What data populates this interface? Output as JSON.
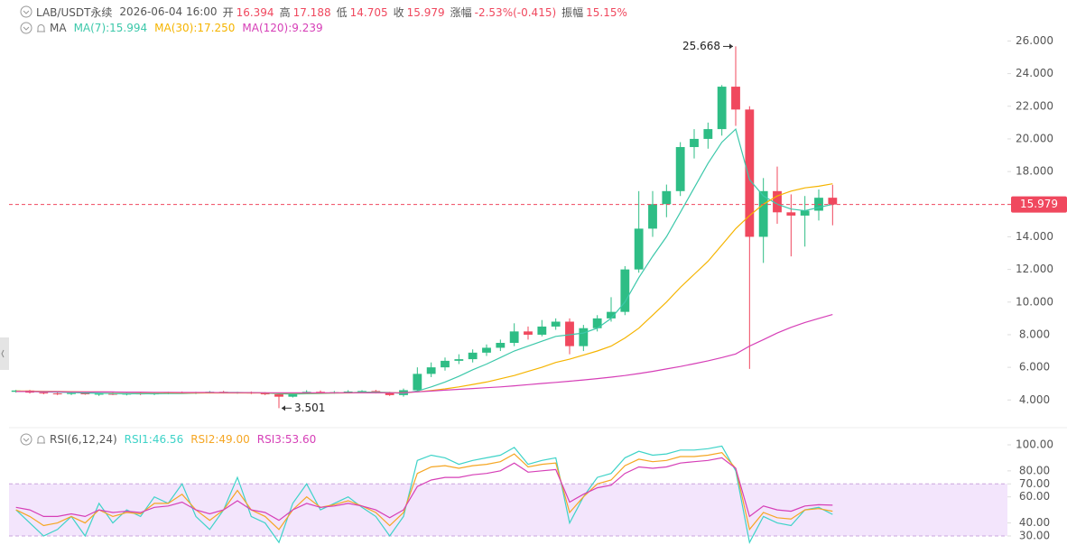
{
  "header": {
    "symbol": "LAB/USDT永续",
    "time": "2026-06-04 16:00",
    "fields": [
      {
        "label": "开",
        "value": "16.394"
      },
      {
        "label": "高",
        "value": "17.188"
      },
      {
        "label": "低",
        "value": "14.705"
      },
      {
        "label": "收",
        "value": "15.979"
      },
      {
        "label": "涨幅",
        "value": "-2.53%(-0.415)"
      },
      {
        "label": "振幅",
        "value": "15.15%"
      }
    ]
  },
  "chart_data": [
    {
      "type": "candlestick",
      "legend_title": "MA",
      "up_color": "#2ebd85",
      "down_color": "#f0485e",
      "ylim": [
        2.8,
        26.3
      ],
      "yticks": [
        {
          "value": 4,
          "label": "4.000"
        },
        {
          "value": 6,
          "label": "6.000"
        },
        {
          "value": 8,
          "label": "8.000"
        },
        {
          "value": 10,
          "label": "10.000"
        },
        {
          "value": 12,
          "label": "12.000"
        },
        {
          "value": 14,
          "label": "14.000"
        },
        {
          "value": 16,
          "label": "16.000"
        },
        {
          "value": 18,
          "label": "18.000"
        },
        {
          "value": 20,
          "label": "20.000"
        },
        {
          "value": 22,
          "label": "22.000"
        },
        {
          "value": 24,
          "label": "24.000"
        },
        {
          "value": 26,
          "label": "26.000"
        }
      ],
      "last_price": {
        "value": 15.979,
        "label": "15.979"
      },
      "annotations": [
        {
          "value": 25.668,
          "label": "25.668"
        },
        {
          "value": 3.501,
          "label": "3.501"
        }
      ],
      "candles": [
        [
          4.5,
          4.62,
          4.45,
          4.58
        ],
        [
          4.58,
          4.62,
          4.4,
          4.45
        ],
        [
          4.45,
          4.52,
          4.35,
          4.4
        ],
        [
          4.4,
          4.48,
          4.3,
          4.38
        ],
        [
          4.38,
          4.45,
          4.3,
          4.42
        ],
        [
          4.42,
          4.5,
          4.32,
          4.35
        ],
        [
          4.35,
          4.42,
          4.25,
          4.38
        ],
        [
          4.38,
          4.45,
          4.3,
          4.33
        ],
        [
          4.33,
          4.42,
          4.28,
          4.4
        ],
        [
          4.4,
          4.48,
          4.3,
          4.36
        ],
        [
          4.36,
          4.44,
          4.3,
          4.4
        ],
        [
          4.4,
          4.5,
          4.35,
          4.45
        ],
        [
          4.45,
          4.52,
          4.38,
          4.42
        ],
        [
          4.42,
          4.5,
          4.36,
          4.46
        ],
        [
          4.46,
          4.55,
          4.4,
          4.5
        ],
        [
          4.5,
          4.56,
          4.4,
          4.44
        ],
        [
          4.44,
          4.5,
          4.38,
          4.46
        ],
        [
          4.46,
          4.52,
          4.36,
          4.4
        ],
        [
          4.4,
          4.48,
          4.3,
          4.35
        ],
        [
          4.35,
          4.42,
          3.501,
          4.2
        ],
        [
          4.2,
          4.45,
          4.15,
          4.4
        ],
        [
          4.4,
          4.6,
          4.35,
          4.5
        ],
        [
          4.5,
          4.58,
          4.4,
          4.45
        ],
        [
          4.45,
          4.55,
          4.38,
          4.48
        ],
        [
          4.48,
          4.6,
          4.42,
          4.52
        ],
        [
          4.52,
          4.6,
          4.45,
          4.55
        ],
        [
          4.55,
          4.62,
          4.4,
          4.45
        ],
        [
          4.45,
          4.5,
          4.25,
          4.3
        ],
        [
          4.3,
          4.7,
          4.2,
          4.6
        ],
        [
          4.6,
          6.0,
          4.55,
          5.6
        ],
        [
          5.6,
          6.3,
          5.4,
          6.0
        ],
        [
          6.0,
          6.6,
          5.8,
          6.4
        ],
        [
          6.4,
          6.8,
          6.2,
          6.5
        ],
        [
          6.5,
          7.1,
          6.3,
          6.9
        ],
        [
          6.9,
          7.4,
          6.7,
          7.2
        ],
        [
          7.2,
          7.7,
          7.0,
          7.5
        ],
        [
          7.5,
          8.7,
          7.3,
          8.2
        ],
        [
          8.2,
          8.5,
          7.7,
          8.0
        ],
        [
          8.0,
          8.9,
          7.9,
          8.5
        ],
        [
          8.5,
          9.0,
          8.3,
          8.8
        ],
        [
          8.8,
          9.0,
          6.8,
          7.3
        ],
        [
          7.3,
          8.6,
          7.0,
          8.4
        ],
        [
          8.4,
          9.2,
          8.2,
          9.0
        ],
        [
          9.0,
          10.3,
          8.8,
          9.4
        ],
        [
          9.4,
          12.2,
          9.2,
          12.0
        ],
        [
          12.0,
          16.8,
          11.8,
          14.5
        ],
        [
          14.5,
          16.8,
          14.0,
          16.0
        ],
        [
          16.0,
          17.2,
          15.2,
          16.8
        ],
        [
          16.8,
          19.8,
          16.5,
          19.5
        ],
        [
          19.5,
          20.6,
          18.8,
          20.0
        ],
        [
          20.0,
          21.0,
          19.4,
          20.6
        ],
        [
          20.6,
          23.3,
          20.2,
          23.2
        ],
        [
          23.2,
          25.668,
          20.8,
          21.8
        ],
        [
          21.8,
          22.0,
          5.9,
          14.0
        ],
        [
          14.0,
          17.6,
          12.4,
          16.8
        ],
        [
          16.8,
          18.3,
          14.8,
          15.5
        ],
        [
          15.5,
          16.6,
          12.8,
          15.3
        ],
        [
          15.3,
          16.5,
          13.4,
          15.6
        ],
        [
          15.6,
          16.9,
          15.0,
          16.394
        ],
        [
          16.394,
          17.188,
          14.705,
          15.979
        ]
      ],
      "series": [
        {
          "name": "MA(7):15.994",
          "color": "#3cc8aa",
          "values": [
            4.52,
            4.52,
            4.5,
            4.48,
            4.46,
            4.43,
            4.41,
            4.39,
            4.38,
            4.38,
            4.38,
            4.39,
            4.4,
            4.42,
            4.44,
            4.46,
            4.46,
            4.45,
            4.43,
            4.38,
            4.36,
            4.38,
            4.4,
            4.42,
            4.44,
            4.48,
            4.48,
            4.46,
            4.4,
            4.55,
            4.8,
            5.1,
            5.45,
            5.85,
            6.2,
            6.6,
            7.0,
            7.3,
            7.6,
            7.9,
            8.0,
            8.1,
            8.4,
            9.0,
            10.0,
            11.5,
            12.8,
            14.0,
            15.5,
            17.0,
            18.5,
            19.8,
            20.6,
            17.5,
            16.5,
            16.0,
            15.7,
            15.6,
            15.8,
            15.994
          ]
        },
        {
          "name": "MA(30):17.250",
          "color": "#f5b400",
          "values": [
            4.55,
            4.54,
            4.53,
            4.52,
            4.51,
            4.5,
            4.49,
            4.48,
            4.47,
            4.46,
            4.45,
            4.44,
            4.43,
            4.43,
            4.43,
            4.43,
            4.43,
            4.43,
            4.43,
            4.42,
            4.42,
            4.42,
            4.42,
            4.43,
            4.43,
            4.44,
            4.44,
            4.44,
            4.45,
            4.5,
            4.58,
            4.68,
            4.8,
            4.95,
            5.1,
            5.3,
            5.5,
            5.75,
            6.0,
            6.3,
            6.5,
            6.75,
            7.0,
            7.3,
            7.8,
            8.4,
            9.2,
            10.0,
            10.9,
            11.7,
            12.5,
            13.5,
            14.5,
            15.3,
            16.0,
            16.5,
            16.8,
            17.0,
            17.1,
            17.25
          ]
        },
        {
          "name": "MA(120):9.239",
          "color": "#d63fb7",
          "values": [
            4.52,
            4.52,
            4.51,
            4.51,
            4.5,
            4.5,
            4.49,
            4.49,
            4.48,
            4.48,
            4.47,
            4.47,
            4.46,
            4.46,
            4.46,
            4.45,
            4.45,
            4.45,
            4.44,
            4.44,
            4.44,
            4.44,
            4.44,
            4.44,
            4.44,
            4.44,
            4.44,
            4.44,
            4.45,
            4.5,
            4.55,
            4.6,
            4.65,
            4.7,
            4.75,
            4.8,
            4.87,
            4.94,
            5.01,
            5.08,
            5.15,
            5.23,
            5.31,
            5.4,
            5.5,
            5.62,
            5.75,
            5.9,
            6.05,
            6.22,
            6.4,
            6.6,
            6.82,
            7.3,
            7.7,
            8.1,
            8.45,
            8.75,
            9.0,
            9.239
          ]
        }
      ]
    },
    {
      "type": "line",
      "legend_title": "RSI(6,12,24)",
      "ylim": [
        20.3,
        109
      ],
      "band": [
        30,
        70
      ],
      "yticks": [
        {
          "value": 30,
          "label": "30.00"
        },
        {
          "value": 40,
          "label": "40.00"
        },
        {
          "value": 60,
          "label": "60.00"
        },
        {
          "value": 70,
          "label": "70.00"
        },
        {
          "value": 80,
          "label": "80.00"
        },
        {
          "value": 100,
          "label": "100.00"
        }
      ],
      "series": [
        {
          "name": "RSI1:46.56",
          "color": "#3ed3c8",
          "values": [
            50,
            40,
            30,
            35,
            45,
            30,
            55,
            40,
            50,
            45,
            60,
            55,
            70,
            45,
            35,
            50,
            75,
            45,
            40,
            25,
            55,
            70,
            50,
            55,
            60,
            52,
            45,
            30,
            45,
            88,
            92,
            90,
            85,
            88,
            90,
            92,
            98,
            85,
            88,
            90,
            40,
            60,
            75,
            78,
            90,
            95,
            92,
            93,
            96,
            96,
            97,
            99,
            80,
            25,
            45,
            40,
            38,
            50,
            52,
            46.56
          ]
        },
        {
          "name": "RSI2:49.00",
          "color": "#f5a623",
          "values": [
            50,
            45,
            38,
            40,
            45,
            40,
            50,
            45,
            48,
            47,
            55,
            55,
            62,
            50,
            42,
            50,
            65,
            50,
            45,
            35,
            50,
            60,
            52,
            54,
            57,
            53,
            48,
            38,
            48,
            78,
            83,
            84,
            82,
            84,
            85,
            87,
            93,
            83,
            85,
            86,
            48,
            60,
            70,
            73,
            84,
            89,
            87,
            88,
            91,
            91,
            92,
            94,
            82,
            35,
            48,
            44,
            43,
            50,
            51,
            49.0
          ]
        },
        {
          "name": "RSI3:53.60",
          "color": "#d63fb7",
          "values": [
            52,
            50,
            45,
            45,
            47,
            45,
            50,
            48,
            49,
            48,
            52,
            53,
            56,
            50,
            47,
            50,
            57,
            50,
            48,
            42,
            50,
            55,
            52,
            53,
            55,
            53,
            50,
            44,
            50,
            68,
            73,
            75,
            75,
            77,
            78,
            80,
            86,
            79,
            80,
            81,
            56,
            62,
            67,
            69,
            78,
            83,
            82,
            83,
            86,
            87,
            88,
            90,
            82,
            45,
            53,
            50,
            49,
            53,
            54,
            53.6
          ]
        }
      ]
    }
  ]
}
